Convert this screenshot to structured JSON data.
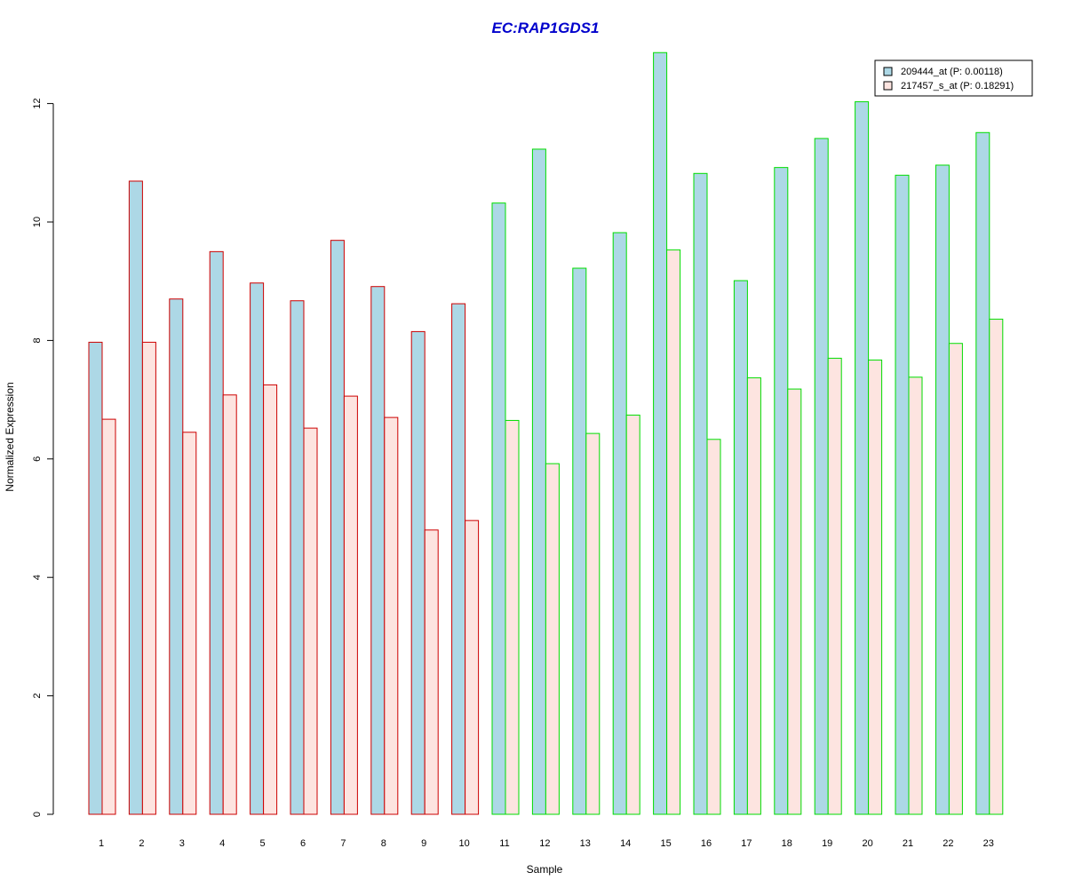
{
  "chart_data": {
    "type": "bar",
    "title": "EC:RAP1GDS1",
    "xlabel": "Sample",
    "ylabel": "Normalized Expression",
    "ylim": [
      0,
      13
    ],
    "yticks": [
      0,
      2,
      4,
      6,
      8,
      10,
      12
    ],
    "grid": false,
    "legend_position": "top-right",
    "categories": [
      "1",
      "2",
      "3",
      "4",
      "5",
      "6",
      "7",
      "8",
      "9",
      "10",
      "11",
      "12",
      "13",
      "14",
      "15",
      "16",
      "17",
      "18",
      "19",
      "20",
      "21",
      "22",
      "23"
    ],
    "group_border_colors": [
      "#cc0000",
      "#cc0000",
      "#cc0000",
      "#cc0000",
      "#cc0000",
      "#cc0000",
      "#cc0000",
      "#cc0000",
      "#cc0000",
      "#cc0000",
      "#00dd00",
      "#00dd00",
      "#00dd00",
      "#00dd00",
      "#00dd00",
      "#00dd00",
      "#00dd00",
      "#00dd00",
      "#00dd00",
      "#00dd00",
      "#00dd00",
      "#00dd00",
      "#00dd00"
    ],
    "series": [
      {
        "name": "209444_at (P: 0.00118)",
        "fill": "#add8e6",
        "values": [
          7.97,
          10.69,
          8.7,
          9.5,
          8.97,
          8.67,
          9.69,
          8.91,
          8.15,
          8.62,
          10.32,
          11.23,
          9.22,
          9.82,
          12.86,
          10.82,
          9.01,
          10.92,
          11.41,
          12.03,
          10.79,
          10.96,
          11.51
        ]
      },
      {
        "name": "217457_s_at (P: 0.18291)",
        "fill": "#fde4e0",
        "values": [
          6.67,
          7.97,
          6.45,
          7.08,
          7.25,
          6.52,
          7.06,
          6.7,
          4.8,
          4.96,
          6.65,
          5.92,
          6.43,
          6.74,
          9.53,
          6.33,
          7.37,
          7.18,
          7.7,
          7.67,
          7.38,
          7.95,
          8.36
        ]
      }
    ]
  }
}
